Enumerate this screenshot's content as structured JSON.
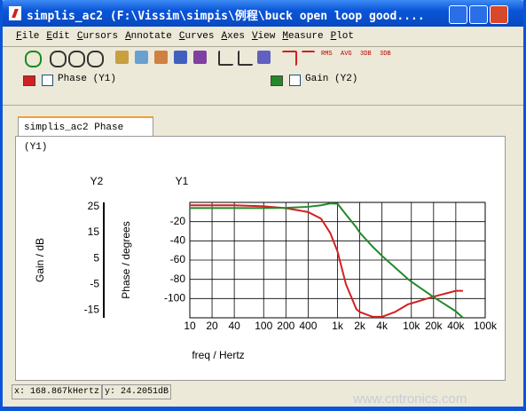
{
  "window": {
    "title": "simplis_ac2 (F:\\Vissim\\simpis\\例程\\buck open loop good...."
  },
  "menu": [
    "File",
    "Edit",
    "Cursors",
    "Annotate",
    "Curves",
    "Axes",
    "View",
    "Measure",
    "Plot"
  ],
  "toolbar": [
    "RMS",
    "AVG",
    "3DB",
    "3DB"
  ],
  "tab": "simplis_ac2 Phase (Y1)",
  "status": {
    "x": "x: 168.867kHertz",
    "y": "y: 24.2051dB"
  },
  "watermark": "www.cntronics.com",
  "chart_data": {
    "type": "line",
    "xlabel": "freq / Hertz",
    "ylabel": "Phase / degrees",
    "y2label": "Gain / dB",
    "y1_title": "Y1",
    "y2_title": "Y2",
    "xscale": "log",
    "grid": true,
    "x": [
      10,
      20,
      40,
      100,
      200,
      400,
      600,
      800,
      1000,
      1300,
      1800,
      2000,
      3000,
      4000,
      6000,
      9000,
      10000,
      20000,
      40000,
      50000
    ],
    "xlim": [
      10,
      100000
    ],
    "xticks": [
      10,
      20,
      40,
      100,
      200,
      400,
      {
        "value": 1000,
        "label": "1k"
      },
      {
        "value": 2000,
        "label": "2k"
      },
      {
        "value": 4000,
        "label": "4k"
      },
      {
        "value": 10000,
        "label": "10k"
      },
      {
        "value": 20000,
        "label": "20k"
      },
      {
        "value": 40000,
        "label": "40k"
      },
      {
        "value": 100000,
        "label": "100k"
      }
    ],
    "ylim": [
      -120,
      0
    ],
    "yticks": [
      -20,
      -40,
      -60,
      -80,
      -100
    ],
    "y2lim": [
      -18,
      26.7
    ],
    "y2ticks": [
      25,
      15,
      5,
      -5,
      -15
    ],
    "series": [
      {
        "name": "Phase (Y1)",
        "color": "#d42020",
        "values": [
          -3,
          -3,
          -3,
          -4,
          -6,
          -10,
          -17,
          -32,
          -51,
          -85,
          -111,
          -114,
          -119,
          -119,
          -114,
          -106,
          -105,
          -98,
          -92,
          -92
        ]
      },
      {
        "name": "Gain (Y2)",
        "color": "#23882a",
        "axis": "y2",
        "values": [
          24.5,
          24.5,
          24.5,
          24.5,
          24.6,
          25,
          25.6,
          26.3,
          26.2,
          22,
          17,
          15,
          9.5,
          6,
          1.5,
          -3,
          -4,
          -10,
          -15.5,
          -18
        ]
      }
    ]
  }
}
